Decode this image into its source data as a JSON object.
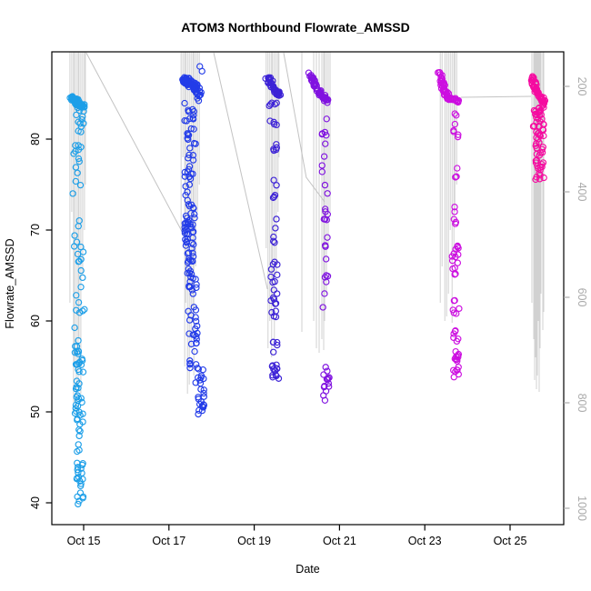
{
  "chart_data": {
    "type": "scatter",
    "title": "ATOM3 Northbound Flowrate_AMSSD",
    "xlabel": "Date",
    "ylabel": "Flowrate_AMSSD",
    "marker": "open-circle",
    "grid": false,
    "seed": 11,
    "x_axis": {
      "ticks": [
        {
          "label": "Oct 15",
          "day": 0
        },
        {
          "label": "Oct 17",
          "day": 2
        },
        {
          "label": "Oct 19",
          "day": 4
        },
        {
          "label": "Oct 21",
          "day": 6
        },
        {
          "label": "Oct 23",
          "day": 8
        },
        {
          "label": "Oct 25",
          "day": 10
        }
      ]
    },
    "y_left": {
      "ticks": [
        40,
        50,
        60,
        70,
        80
      ],
      "range": [
        37.6,
        89.6
      ],
      "color": "#000000"
    },
    "y_right": {
      "ticks": [
        200,
        400,
        600,
        800,
        1000
      ],
      "inverted": true,
      "color": "#ABABAB"
    },
    "spike_color": "#C9C9C9",
    "connector_color": "#BDBDBD",
    "connectors": [
      {
        "pts": [
          [
            0.06,
            89.5
          ],
          [
            2.39,
            69.1
          ]
        ]
      },
      {
        "pts": [
          [
            3.05,
            89.5
          ],
          [
            4.31,
            63.5
          ]
        ]
      },
      {
        "pts": [
          [
            4.69,
            89.5
          ],
          [
            5.22,
            75.8
          ],
          [
            5.65,
            73.1
          ]
        ]
      },
      {
        "pts": [
          [
            8.85,
            84.6
          ],
          [
            10.49,
            84.7
          ]
        ]
      }
    ],
    "clusters": [
      {
        "id": "cluster-oct15",
        "label": "Oct 14.9",
        "color": "#1D9FE8",
        "day": -0.13,
        "head": {
          "path": [
            [
              -7,
              84.7
            ],
            [
              0,
              83.9
            ],
            [
              6,
              83.4
            ]
          ],
          "n": 55,
          "jitter": 4.5
        },
        "segments": [
          [
            83.2,
            81.5,
            8,
            2,
            10
          ],
          [
            81.5,
            79.0,
            6,
            1,
            10
          ],
          [
            79.0,
            73.0,
            10,
            0,
            12
          ],
          [
            73.0,
            67.0,
            8,
            1,
            12
          ],
          [
            67.0,
            62.0,
            8,
            2,
            10
          ],
          [
            62.0,
            56.5,
            12,
            2,
            12
          ],
          [
            56.5,
            53.0,
            14,
            2,
            10
          ],
          [
            53.0,
            49.0,
            20,
            1,
            9
          ],
          [
            49.0,
            45.6,
            8,
            3,
            10
          ],
          [
            44.5,
            42.0,
            14,
            2,
            7
          ],
          [
            42.0,
            39.5,
            7,
            2,
            8
          ]
        ],
        "spikes": [
          [
            -9,
            62
          ],
          [
            -7,
            72
          ],
          [
            -5,
            51
          ],
          [
            -4,
            55
          ],
          [
            -2,
            50
          ],
          [
            0,
            53
          ],
          [
            1,
            58
          ],
          [
            3,
            52
          ],
          [
            5,
            65
          ],
          [
            7,
            70
          ],
          [
            8,
            75
          ]
        ]
      },
      {
        "id": "cluster-oct17",
        "label": "Oct 17.5",
        "color": "#233CE8",
        "day": 2.52,
        "head": {
          "path": [
            [
              -9,
              86.6
            ],
            [
              0,
              86.1
            ],
            [
              8,
              85.3
            ]
          ],
          "n": 80,
          "jitter": 5
        },
        "segments": [
          [
            88.0,
            87.4,
            2,
            12,
            6
          ],
          [
            85.0,
            84.1,
            6,
            7,
            8
          ],
          [
            84.1,
            81.5,
            12,
            -2,
            14
          ],
          [
            81.5,
            78.5,
            10,
            -1,
            12
          ],
          [
            78.5,
            74.5,
            16,
            -2,
            10
          ],
          [
            74.5,
            70.8,
            16,
            -1,
            12
          ],
          [
            70.8,
            66.5,
            34,
            -2,
            10
          ],
          [
            66.5,
            63.1,
            16,
            0,
            12
          ],
          [
            63.1,
            59.8,
            8,
            1,
            10
          ],
          [
            59.8,
            54.8,
            18,
            2,
            10
          ],
          [
            54.8,
            52.8,
            9,
            10,
            10
          ],
          [
            52.8,
            49.6,
            16,
            11,
            7
          ]
        ],
        "spikes": [
          [
            -11,
            70
          ],
          [
            -9,
            78
          ],
          [
            -7,
            55
          ],
          [
            -6,
            62
          ],
          [
            -4,
            52
          ],
          [
            -2,
            53
          ],
          [
            0,
            57
          ],
          [
            2,
            60
          ],
          [
            3,
            54
          ],
          [
            5,
            66
          ],
          [
            7,
            72
          ],
          [
            9,
            75
          ]
        ]
      },
      {
        "id": "cluster-oct19",
        "label": "Oct 19.4",
        "color": "#3C22D6",
        "day": 4.43,
        "head": {
          "path": [
            [
              -6,
              86.8
            ],
            [
              -2,
              86.2
            ],
            [
              2,
              85.4
            ],
            [
              8,
              84.8
            ]
          ],
          "n": 45,
          "jitter": 3
        },
        "segments": [
          [
            84.2,
            81.5,
            9,
            0,
            10
          ],
          [
            80.0,
            78.5,
            5,
            2,
            8
          ],
          [
            76.5,
            73.0,
            5,
            1,
            8
          ],
          [
            72.0,
            68.5,
            5,
            1,
            8
          ],
          [
            66.5,
            63.8,
            8,
            2,
            8
          ],
          [
            63.5,
            60.1,
            11,
            2,
            8
          ],
          [
            58.2,
            56.2,
            5,
            3,
            8
          ],
          [
            55.8,
            53.6,
            13,
            3,
            8
          ]
        ],
        "spikes": [
          [
            -7,
            68
          ],
          [
            -5,
            57
          ],
          [
            -3,
            60
          ],
          [
            -1,
            56
          ],
          [
            0,
            62
          ],
          [
            2,
            58
          ],
          [
            4,
            65
          ],
          [
            6,
            72
          ],
          [
            7,
            78
          ]
        ]
      },
      {
        "id": "cluster-oct21",
        "label": "Oct 20.7",
        "color": "#8013E0",
        "day": 5.65,
        "head": {
          "path": [
            [
              -16,
              87.2
            ],
            [
              -12,
              86.2
            ],
            [
              -7,
              85.2
            ],
            [
              0,
              84.5
            ],
            [
              3,
              84.2
            ]
          ],
          "n": 55,
          "jitter": 3
        },
        "segments": [
          [
            83.0,
            75.0,
            9,
            0,
            6
          ],
          [
            75.0,
            69.5,
            8,
            1,
            6
          ],
          [
            69.5,
            58.5,
            10,
            1,
            6
          ],
          [
            55.5,
            51.1,
            15,
            2,
            7
          ]
        ],
        "spikes": [
          [
            -25,
            58.8
          ],
          [
            -12,
            60
          ],
          [
            -9,
            57
          ],
          [
            -6,
            56.5
          ],
          [
            -3,
            58
          ],
          [
            -1,
            56.8
          ],
          [
            0,
            60
          ],
          [
            2,
            63
          ],
          [
            4,
            68
          ],
          [
            6,
            72
          ]
        ]
      },
      {
        "id": "cluster-oct23",
        "label": "Oct 23.6",
        "color": "#CC0FE0",
        "day": 8.64,
        "head": {
          "path": [
            [
              -14,
              87.4
            ],
            [
              -11,
              86.3
            ],
            [
              -8,
              85.2
            ],
            [
              -4,
              84.5
            ],
            [
              4,
              84.2
            ],
            [
              8,
              84.4
            ]
          ],
          "n": 60,
          "jitter": 3
        },
        "segments": [
          [
            82.8,
            79.5,
            7,
            4,
            6
          ],
          [
            77.0,
            75.5,
            4,
            3,
            6
          ],
          [
            72.8,
            70.5,
            5,
            4,
            6
          ],
          [
            69.3,
            64.8,
            14,
            4,
            8
          ],
          [
            62.3,
            60.8,
            6,
            4,
            8
          ],
          [
            59.0,
            57.5,
            6,
            4,
            6
          ],
          [
            57.0,
            53.5,
            16,
            4,
            7
          ]
        ],
        "spikes": [
          [
            -13,
            62
          ],
          [
            -11,
            66
          ],
          [
            -8,
            60
          ],
          [
            -6,
            60.5
          ],
          [
            -4,
            63
          ],
          [
            -2,
            70
          ],
          [
            0,
            59.8
          ],
          [
            2,
            67
          ],
          [
            3,
            72
          ],
          [
            5,
            75
          ]
        ]
      },
      {
        "id": "cluster-oct25",
        "label": "Oct 25.6",
        "color": "#F50CA0",
        "day": 10.64,
        "head": {
          "path": [
            [
              -7,
              87.0
            ],
            [
              -3,
              85.8
            ],
            [
              2,
              84.8
            ],
            [
              7,
              84.1
            ]
          ],
          "n": 50,
          "jitter": 3
        },
        "segments": [
          [
            84.3,
            82.5,
            18,
            2,
            12
          ],
          [
            82.5,
            80.5,
            16,
            1,
            12
          ],
          [
            80.5,
            78.5,
            14,
            2,
            10
          ],
          [
            78.5,
            76.8,
            10,
            2,
            10
          ],
          [
            76.8,
            75.3,
            8,
            3,
            10
          ]
        ],
        "spikes": [
          [
            -6,
            62
          ],
          [
            -4,
            58
          ],
          [
            -3,
            53.5
          ],
          [
            -2,
            56
          ],
          [
            -1,
            52.5
          ],
          [
            0,
            54
          ],
          [
            1,
            60
          ],
          [
            2,
            52.2
          ],
          [
            3,
            57
          ],
          [
            4,
            63
          ],
          [
            6,
            59
          ],
          [
            7,
            61
          ]
        ]
      }
    ]
  }
}
